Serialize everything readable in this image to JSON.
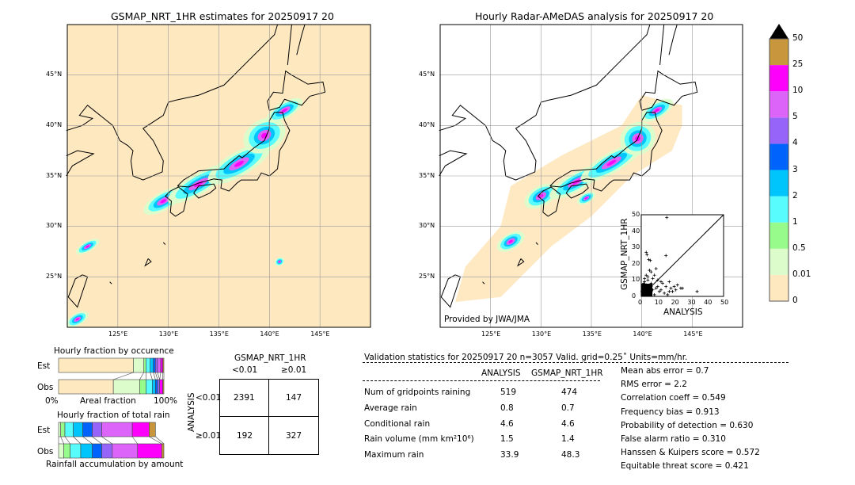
{
  "colors": {
    "levels": [
      "#fee8c0",
      "#dcfccc",
      "#97fb8c",
      "#58fcfc",
      "#00c4fc",
      "#0064fc",
      "#9764f9",
      "#dc64f9",
      "#fc00fc",
      "#c8963c"
    ],
    "ocean": "#fee8c0",
    "over": "#000000"
  },
  "left_map": {
    "title": "GSMAP_NRT_1HR estimates for 20250917 20"
  },
  "right_map": {
    "title": "Hourly Radar-AMeDAS analysis for 20250917 20",
    "credit": "Provided by JWA/JMA"
  },
  "lat_ticks": [
    "45°N",
    "40°N",
    "35°N",
    "30°N",
    "25°N"
  ],
  "lon_ticks": [
    "125°E",
    "130°E",
    "135°E",
    "140°E",
    "145°E"
  ],
  "colorbar": {
    "labels": [
      "0",
      "0.01",
      "0.5",
      "1",
      "2",
      "3",
      "4",
      "5",
      "10",
      "25",
      "50"
    ]
  },
  "chart_data": [
    {
      "type": "scatter",
      "xlabel": "ANALYSIS",
      "ylabel": "GSMAP_NRT_1HR",
      "xlim": [
        0,
        50
      ],
      "ylim": [
        0,
        50
      ],
      "ticks": [
        "0",
        "10",
        "20",
        "30",
        "40",
        "50"
      ],
      "points": [
        [
          15.5,
          48.3
        ],
        [
          15,
          25
        ],
        [
          3,
          27
        ],
        [
          3.5,
          25.5
        ],
        [
          4.5,
          22.5
        ],
        [
          5.5,
          22
        ],
        [
          3,
          13
        ],
        [
          4,
          12
        ],
        [
          5,
          16
        ],
        [
          6,
          15
        ],
        [
          9,
          17
        ],
        [
          8,
          13
        ],
        [
          7,
          11
        ],
        [
          10,
          10
        ],
        [
          12,
          9
        ],
        [
          13,
          8
        ],
        [
          15,
          6
        ],
        [
          17,
          9
        ],
        [
          18,
          5
        ],
        [
          20,
          6
        ],
        [
          22,
          7
        ],
        [
          24,
          5
        ],
        [
          17,
          3
        ],
        [
          19,
          3
        ],
        [
          21,
          4
        ],
        [
          33.9,
          3
        ],
        [
          14,
          2
        ],
        [
          16,
          1
        ],
        [
          11,
          3
        ],
        [
          9,
          5
        ],
        [
          6,
          8
        ],
        [
          2,
          9
        ],
        [
          1,
          6
        ],
        [
          3,
          4
        ],
        [
          5,
          3
        ],
        [
          2,
          2
        ],
        [
          4,
          1
        ],
        [
          1,
          1
        ],
        [
          6,
          2
        ],
        [
          8,
          1
        ],
        [
          7,
          4
        ],
        [
          3,
          7
        ],
        [
          0.5,
          3
        ],
        [
          1.5,
          8
        ],
        [
          10,
          6
        ],
        [
          12,
          4
        ],
        [
          25,
          5
        ],
        [
          2,
          11
        ],
        [
          4,
          10
        ],
        [
          6,
          6
        ]
      ]
    },
    {
      "type": "bar",
      "title": "Hourly fraction by occurence",
      "xlabel": "Areal fraction",
      "xtick_labels": [
        "0%",
        "100%"
      ],
      "categories": [
        "Est",
        "Obs"
      ],
      "cumulative_percent": {
        "Est": [
          71,
          81,
          83,
          87,
          90,
          92,
          94,
          97,
          99,
          100
        ],
        "Obs": [
          52,
          77,
          83,
          89,
          92,
          94,
          96,
          96,
          99,
          100
        ]
      }
    },
    {
      "type": "bar",
      "title": "Hourly fraction of total rain",
      "xlabel": "Rainfall accumulation by amount",
      "categories": [
        "Est",
        "Obs"
      ],
      "cumulative_percent": {
        "Est": [
          0,
          2,
          6,
          14,
          23,
          32,
          41,
          70,
          86,
          92
        ],
        "Obs": [
          0,
          5,
          11,
          21,
          32,
          41,
          51,
          75,
          98,
          100
        ]
      }
    }
  ],
  "contingency": {
    "title": "GSMAP_NRT_1HR",
    "cols": [
      "<0.01",
      "≥0.01"
    ],
    "row_label": "ANALYSIS",
    "rows": [
      "<0.01",
      "≥0.01"
    ],
    "cells": [
      [
        "2391",
        "147"
      ],
      [
        "192",
        "327"
      ]
    ]
  },
  "stats": {
    "header": "Validation statistics for 20250917 20  n=3057 Valid. grid=0.25˚ Units=mm/hr.",
    "cols": [
      "ANALYSIS",
      "GSMAP_NRT_1HR"
    ],
    "rows": [
      {
        "label": "Num of gridpoints raining",
        "a": "519",
        "b": "474"
      },
      {
        "label": "Average rain",
        "a": "0.8",
        "b": "0.7"
      },
      {
        "label": "Conditional rain",
        "a": "4.6",
        "b": "4.6"
      },
      {
        "label": "Rain volume (mm km²10⁶)",
        "a": "1.5",
        "b": "1.4"
      },
      {
        "label": "Maximum rain",
        "a": "33.9",
        "b": "48.3"
      }
    ],
    "scores": [
      "Mean abs error =    0.7",
      "RMS error =    2.2",
      "Correlation coeff =  0.549",
      "Frequency bias =  0.913",
      "Probability of detection =  0.630",
      "False alarm ratio =  0.310",
      "Hanssen & Kuipers score =  0.572",
      "Equitable threat score =  0.421"
    ]
  }
}
